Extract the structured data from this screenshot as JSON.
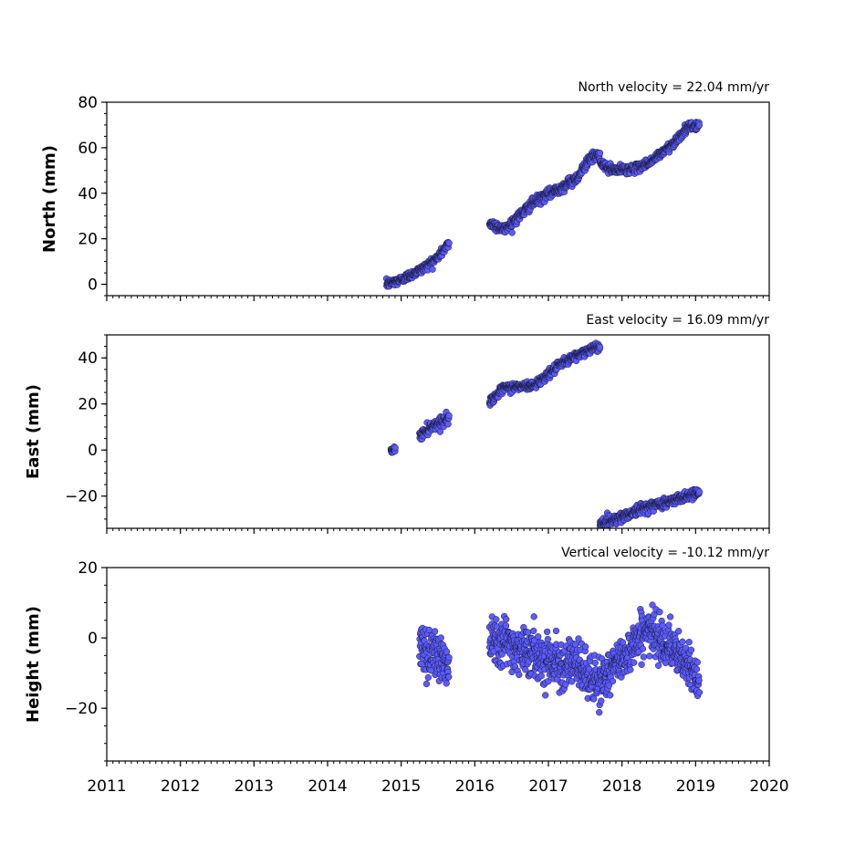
{
  "colors": {
    "marker_fill": "#5b5bff",
    "marker_edge": "#1a1a3a",
    "axes": "#000000"
  },
  "x_axis": {
    "ticks": [
      2011,
      2012,
      2013,
      2014,
      2015,
      2016,
      2017,
      2018,
      2019,
      2020
    ],
    "range": [
      2011,
      2020
    ]
  },
  "chart_data": [
    {
      "type": "scatter",
      "ylabel": "North (mm)",
      "annotation": "North velocity = 22.04 mm/yr",
      "ylim": [
        -5,
        80
      ],
      "yticks": [
        0,
        20,
        40,
        60,
        80
      ],
      "series": [
        {
          "segments": [
            {
              "x0": 2014.8,
              "x1": 2015.65,
              "trend": [
                [
                  2014.8,
                  0
                ],
                [
                  2015.0,
                  2
                ],
                [
                  2015.3,
                  7
                ],
                [
                  2015.5,
                  12
                ],
                [
                  2015.65,
                  18
                ]
              ],
              "noise": 1.5
            },
            {
              "x0": 2016.2,
              "x1": 2017.7,
              "trend": [
                [
                  2016.2,
                  27
                ],
                [
                  2016.4,
                  24
                ],
                [
                  2016.8,
                  36
                ],
                [
                  2017.2,
                  43
                ],
                [
                  2017.4,
                  47
                ],
                [
                  2017.55,
                  55
                ],
                [
                  2017.7,
                  57
                ]
              ],
              "noise": 1.8
            },
            {
              "x0": 2017.7,
              "x1": 2019.05,
              "trend": [
                [
                  2017.7,
                  53
                ],
                [
                  2017.9,
                  50
                ],
                [
                  2018.2,
                  51
                ],
                [
                  2018.4,
                  54
                ],
                [
                  2018.7,
                  62
                ],
                [
                  2018.9,
                  69
                ],
                [
                  2019.05,
                  70
                ]
              ],
              "noise": 1.5
            }
          ]
        }
      ]
    },
    {
      "type": "scatter",
      "ylabel": "East (mm)",
      "annotation": "East velocity = 16.09 mm/yr",
      "ylim": [
        -34,
        50
      ],
      "yticks": [
        -20,
        0,
        20,
        40
      ],
      "series": [
        {
          "segments": [
            {
              "x0": 2014.86,
              "x1": 2014.92,
              "trend": [
                [
                  2014.86,
                  -0.5
                ],
                [
                  2014.92,
                  0.5
                ]
              ],
              "noise": 1.0
            },
            {
              "x0": 2015.25,
              "x1": 2015.65,
              "trend": [
                [
                  2015.25,
                  6
                ],
                [
                  2015.4,
                  10
                ],
                [
                  2015.65,
                  14
                ]
              ],
              "noise": 1.8
            },
            {
              "x0": 2016.2,
              "x1": 2017.7,
              "trend": [
                [
                  2016.2,
                  21
                ],
                [
                  2016.4,
                  27
                ],
                [
                  2016.8,
                  28
                ],
                [
                  2017.2,
                  38
                ],
                [
                  2017.5,
                  43
                ],
                [
                  2017.7,
                  45
                ]
              ],
              "noise": 1.5
            },
            {
              "x0": 2017.7,
              "x1": 2019.05,
              "trend": [
                [
                  2017.7,
                  -32
                ],
                [
                  2018.0,
                  -29
                ],
                [
                  2018.3,
                  -25
                ],
                [
                  2018.7,
                  -22
                ],
                [
                  2019.05,
                  -18
                ]
              ],
              "noise": 1.8
            }
          ]
        }
      ]
    },
    {
      "type": "scatter",
      "ylabel": "Height (mm)",
      "annotation": "Vertical velocity = -10.12 mm/yr",
      "ylim": [
        -35,
        20
      ],
      "yticks": [
        -20,
        0,
        20
      ],
      "series": [
        {
          "segments": [
            {
              "x0": 2015.25,
              "x1": 2015.65,
              "trend": [
                [
                  2015.25,
                  -3
                ],
                [
                  2015.45,
                  -4
                ],
                [
                  2015.65,
                  -8
                ]
              ],
              "noise": 6
            },
            {
              "x0": 2016.2,
              "x1": 2017.7,
              "trend": [
                [
                  2016.2,
                  1
                ],
                [
                  2016.6,
                  -3
                ],
                [
                  2017.0,
                  -6
                ],
                [
                  2017.4,
                  -8
                ],
                [
                  2017.7,
                  -14
                ]
              ],
              "noise": 5.5
            },
            {
              "x0": 2017.7,
              "x1": 2019.05,
              "trend": [
                [
                  2017.7,
                  -12
                ],
                [
                  2018.0,
                  -6
                ],
                [
                  2018.3,
                  2
                ],
                [
                  2018.5,
                  1
                ],
                [
                  2018.8,
                  -6
                ],
                [
                  2019.05,
                  -12
                ]
              ],
              "noise": 5
            }
          ]
        }
      ]
    }
  ]
}
